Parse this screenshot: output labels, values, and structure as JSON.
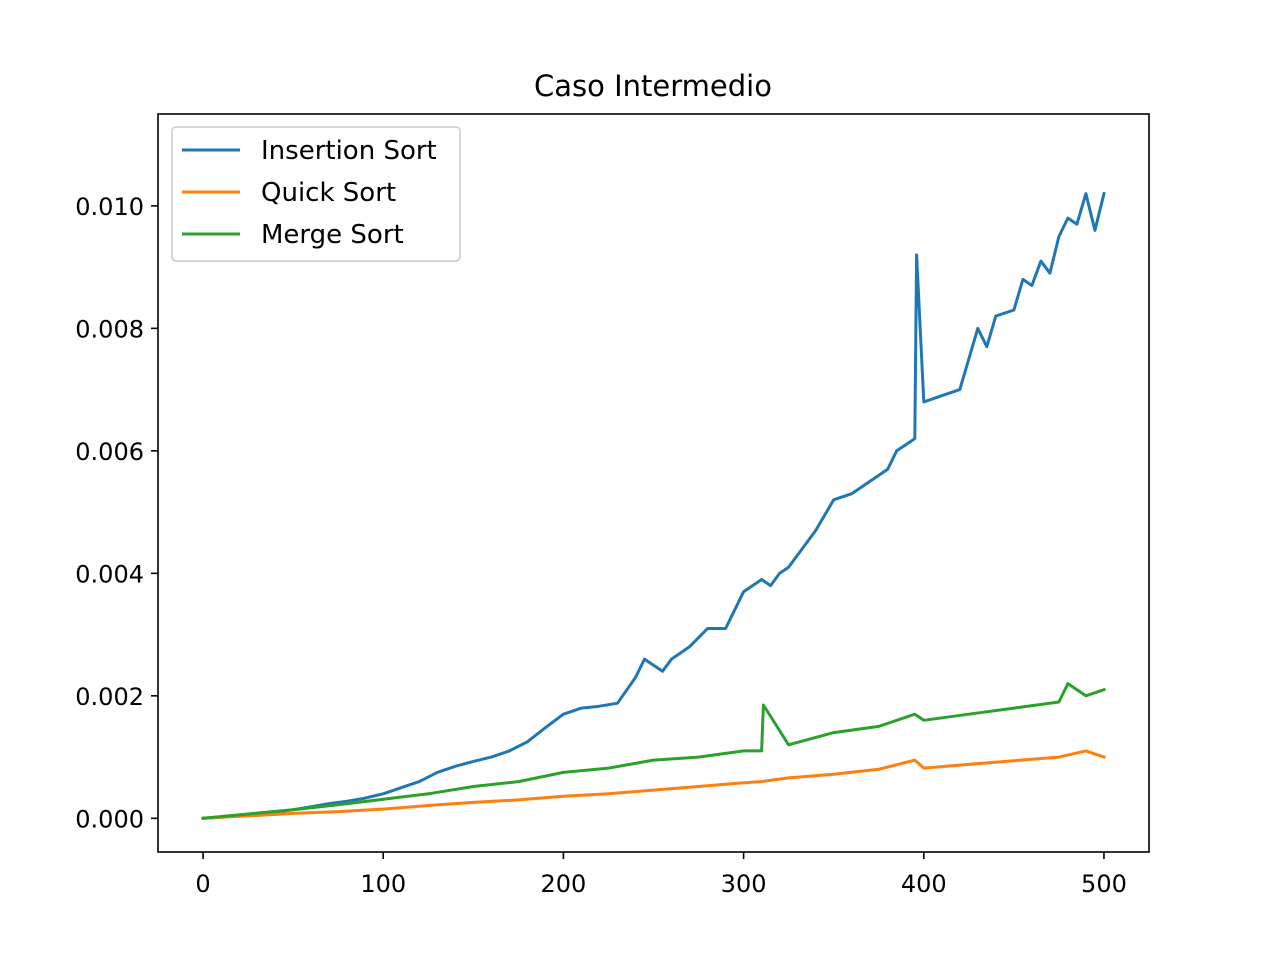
{
  "chart_data": {
    "type": "line",
    "title": "Caso Intermedio",
    "xlabel": "",
    "ylabel": "",
    "xlim": [
      -25,
      525
    ],
    "ylim": [
      -0.00055,
      0.0115
    ],
    "xticks": [
      0,
      100,
      200,
      300,
      400,
      500
    ],
    "xtick_labels": [
      "0",
      "100",
      "200",
      "300",
      "400",
      "500"
    ],
    "yticks": [
      0,
      0.002,
      0.004,
      0.006,
      0.008,
      0.01
    ],
    "ytick_labels": [
      "0.000",
      "0.002",
      "0.004",
      "0.006",
      "0.008",
      "0.010"
    ],
    "grid": false,
    "legend": "top-left",
    "series": [
      {
        "name": "Insertion Sort",
        "color": "#1f77b4",
        "x": [
          0,
          10,
          20,
          30,
          40,
          50,
          60,
          70,
          80,
          90,
          100,
          110,
          120,
          130,
          140,
          150,
          160,
          170,
          180,
          190,
          200,
          210,
          220,
          230,
          240,
          245,
          250,
          255,
          260,
          270,
          280,
          290,
          300,
          305,
          310,
          315,
          320,
          325,
          330,
          340,
          350,
          360,
          370,
          380,
          385,
          390,
          395,
          396,
          400,
          410,
          420,
          425,
          430,
          435,
          440,
          450,
          455,
          460,
          465,
          470,
          475,
          480,
          485,
          490,
          495,
          500
        ],
        "y": [
          0.0,
          2e-05,
          4e-05,
          7e-05,
          0.0001,
          0.00014,
          0.00019,
          0.00024,
          0.00028,
          0.00033,
          0.0004,
          0.0005,
          0.0006,
          0.00075,
          0.00085,
          0.00093,
          0.001,
          0.0011,
          0.00125,
          0.00148,
          0.0017,
          0.0018,
          0.00183,
          0.00188,
          0.0023,
          0.0026,
          0.0025,
          0.0024,
          0.0026,
          0.0028,
          0.0031,
          0.0031,
          0.0037,
          0.0038,
          0.0039,
          0.0038,
          0.004,
          0.0041,
          0.0043,
          0.0047,
          0.0052,
          0.0053,
          0.0055,
          0.0057,
          0.006,
          0.0061,
          0.0062,
          0.0092,
          0.0068,
          0.0069,
          0.007,
          0.0075,
          0.008,
          0.0077,
          0.0082,
          0.0083,
          0.0088,
          0.0087,
          0.0091,
          0.0089,
          0.0095,
          0.0098,
          0.0097,
          0.0102,
          0.0096,
          0.0102
        ]
      },
      {
        "name": "Quick Sort",
        "color": "#ff7f0e",
        "x": [
          0,
          25,
          50,
          75,
          100,
          125,
          150,
          175,
          200,
          225,
          250,
          275,
          300,
          310,
          325,
          350,
          375,
          395,
          400,
          425,
          450,
          475,
          490,
          500
        ],
        "y": [
          0.0,
          4e-05,
          8e-05,
          0.00011,
          0.00015,
          0.00021,
          0.00026,
          0.0003,
          0.00036,
          0.0004,
          0.00046,
          0.00052,
          0.00058,
          0.0006,
          0.00066,
          0.00072,
          0.0008,
          0.00095,
          0.00082,
          0.00088,
          0.00094,
          0.001,
          0.0011,
          0.001
        ]
      },
      {
        "name": "Merge Sort",
        "color": "#2ca02c",
        "x": [
          0,
          25,
          50,
          75,
          100,
          125,
          150,
          175,
          200,
          225,
          250,
          275,
          300,
          310,
          311,
          325,
          350,
          375,
          395,
          400,
          425,
          450,
          475,
          480,
          490,
          500
        ],
        "y": [
          0.0,
          7e-05,
          0.00014,
          0.00022,
          0.00031,
          0.0004,
          0.00052,
          0.0006,
          0.00075,
          0.00082,
          0.00095,
          0.001,
          0.0011,
          0.0011,
          0.00185,
          0.0012,
          0.0014,
          0.0015,
          0.0017,
          0.0016,
          0.0017,
          0.0018,
          0.0019,
          0.0022,
          0.002,
          0.0021
        ]
      }
    ]
  }
}
